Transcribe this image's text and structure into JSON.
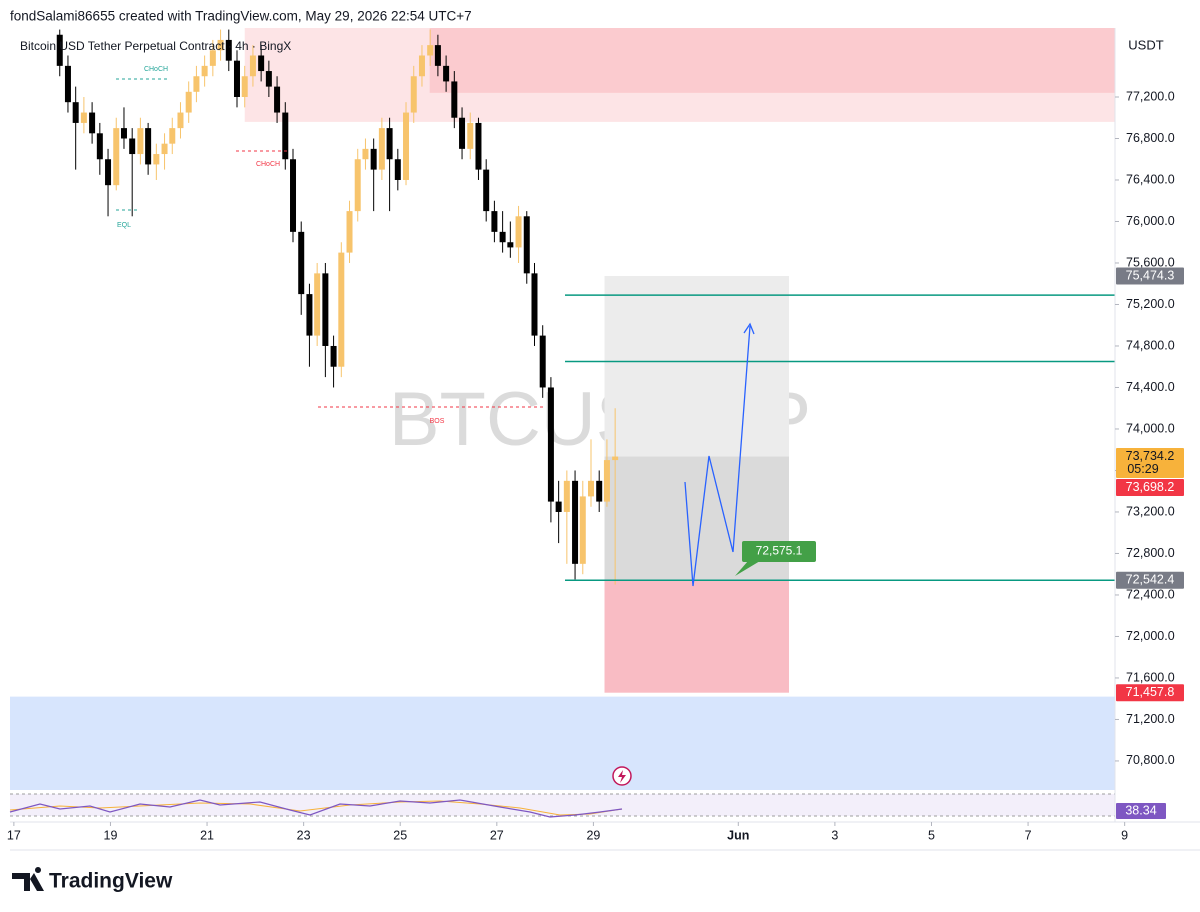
{
  "header": "fondSalami86655 created with TradingView.com, May 29, 2026 22:54 UTC+7",
  "footer": "TradingView",
  "chart_data": {
    "type": "candlestick",
    "title": "Bitcoin USD Tether Perpetual Contract · 4h · BingX",
    "watermark": "BTCUSDT.P",
    "currency": "USDT",
    "up_color": "#f7c46c",
    "down_color": "#000000",
    "x": [
      0.95,
      1.12,
      1.28,
      1.45,
      1.62,
      1.78,
      1.95,
      2.12,
      2.28,
      2.45,
      2.62,
      2.78,
      2.95,
      3.12,
      3.28,
      3.45,
      3.62,
      3.78,
      3.95,
      4.12,
      4.28,
      4.45,
      4.62,
      4.78,
      4.95,
      5.12,
      5.28,
      5.45,
      5.62,
      5.78,
      5.95,
      6.12,
      6.28,
      6.45,
      6.62,
      6.78,
      6.95,
      7.12,
      7.28,
      7.45,
      7.62,
      7.78,
      7.95,
      8.12,
      8.28,
      8.45,
      8.62,
      8.78,
      8.95,
      9.12,
      9.28,
      9.45,
      9.62,
      9.78,
      9.95,
      10.12,
      10.28,
      10.45,
      10.62,
      10.78,
      10.95,
      11.12,
      11.28,
      11.45,
      11.62,
      11.78,
      11.95,
      12.12,
      12.28,
      12.45
    ],
    "open": [
      77800,
      77500,
      77150,
      76950,
      77050,
      76850,
      76600,
      76350,
      76900,
      76800,
      76650,
      76900,
      76550,
      76650,
      76750,
      76900,
      77050,
      77250,
      77400,
      77500,
      77650,
      77750,
      77550,
      77200,
      77400,
      77600,
      77450,
      77300,
      77050,
      76600,
      75900,
      75300,
      74900,
      75500,
      74800,
      74600,
      75700,
      76100,
      76600,
      76700,
      76500,
      76900,
      76600,
      76400,
      77050,
      77400,
      77600,
      77700,
      77500,
      77350,
      77000,
      76700,
      76950,
      76500,
      76100,
      75900,
      75800,
      75750,
      76050,
      75500,
      74900,
      74400,
      73300,
      73200,
      73500,
      72700,
      73350,
      73500,
      73300,
      73700
    ],
    "high": [
      77850,
      77600,
      77300,
      77200,
      77150,
      76950,
      76700,
      77000,
      77100,
      76900,
      77000,
      76950,
      76750,
      76850,
      77000,
      77150,
      77350,
      77500,
      77600,
      77750,
      77850,
      77850,
      77650,
      77500,
      77700,
      77700,
      77550,
      77400,
      77150,
      76700,
      76000,
      75400,
      75600,
      75600,
      74900,
      75800,
      76200,
      76700,
      76800,
      76800,
      77000,
      77000,
      76700,
      77150,
      77500,
      77700,
      77850,
      77800,
      77600,
      77450,
      77100,
      77050,
      77000,
      76600,
      76200,
      76100,
      76000,
      76150,
      76100,
      75600,
      75000,
      74500,
      73500,
      73600,
      73600,
      73500,
      73900,
      73600,
      73900,
      74200
    ],
    "low": [
      77400,
      77050,
      76500,
      76850,
      76750,
      76450,
      76050,
      76300,
      76700,
      76050,
      76550,
      76450,
      76400,
      76500,
      76650,
      76800,
      76950,
      77150,
      77300,
      77400,
      77550,
      77450,
      77100,
      77100,
      77300,
      77350,
      77200,
      76950,
      76500,
      75800,
      75100,
      74600,
      74800,
      74500,
      74400,
      74500,
      75600,
      76000,
      76500,
      76100,
      76400,
      76100,
      76300,
      76350,
      76950,
      77300,
      77500,
      77400,
      77250,
      76900,
      76600,
      76600,
      76400,
      76000,
      75800,
      75700,
      75650,
      75600,
      75400,
      74800,
      74300,
      73100,
      72900,
      72700,
      72550,
      72600,
      73250,
      73200,
      73250,
      72500
    ],
    "close": [
      77500,
      77150,
      76950,
      77050,
      76850,
      76600,
      76350,
      76900,
      76800,
      76650,
      76900,
      76550,
      76650,
      76750,
      76900,
      77050,
      77250,
      77400,
      77500,
      77650,
      77750,
      77550,
      77200,
      77400,
      77600,
      77450,
      77300,
      77050,
      76600,
      75900,
      75300,
      74900,
      75500,
      74800,
      74600,
      75700,
      76100,
      76600,
      76700,
      76500,
      76900,
      76600,
      76400,
      77050,
      77400,
      77600,
      77700,
      77500,
      77350,
      77000,
      76700,
      76950,
      76500,
      76100,
      75900,
      75800,
      75750,
      76050,
      75500,
      74900,
      74400,
      73300,
      73200,
      73500,
      72700,
      73350,
      73500,
      73300,
      73700,
      73734.2
    ],
    "xlim": [
      -0.08,
      22.8
    ],
    "ylim": [
      70520,
      77865
    ],
    "xticks": [
      {
        "value": 0,
        "label": "17"
      },
      {
        "value": 2,
        "label": "19"
      },
      {
        "value": 4,
        "label": "21"
      },
      {
        "value": 6,
        "label": "23"
      },
      {
        "value": 8,
        "label": "25"
      },
      {
        "value": 10,
        "label": "27"
      },
      {
        "value": 12,
        "label": "29"
      },
      {
        "value": 15,
        "label": "Jun"
      },
      {
        "value": 17,
        "label": "3"
      },
      {
        "value": 19,
        "label": "5"
      },
      {
        "value": 21,
        "label": "7"
      },
      {
        "value": 23,
        "label": "9"
      }
    ],
    "yticks": [
      {
        "value": 70800,
        "label": "70,800.0"
      },
      {
        "value": 71200,
        "label": "71,200.0"
      },
      {
        "value": 71600,
        "label": "71,600.0"
      },
      {
        "value": 72000,
        "label": "72,000.0"
      },
      {
        "value": 72400,
        "label": "72,400.0"
      },
      {
        "value": 72800,
        "label": "72,800.0"
      },
      {
        "value": 73200,
        "label": "73,200.0"
      },
      {
        "value": 73600,
        "label": "73,600.0"
      },
      {
        "value": 74000,
        "label": "74,000.0"
      },
      {
        "value": 74400,
        "label": "74,400.0"
      },
      {
        "value": 74800,
        "label": "74,800.0"
      },
      {
        "value": 75200,
        "label": "75,200.0"
      },
      {
        "value": 75600,
        "label": "75,600.0"
      },
      {
        "value": 76000,
        "label": "76,000.0"
      },
      {
        "value": 76400,
        "label": "76,400.0"
      },
      {
        "value": 76800,
        "label": "76,800.0"
      },
      {
        "value": 77200,
        "label": "77,200.0"
      }
    ],
    "zones": [
      {
        "from": 76960,
        "to": 77865,
        "start": 4.78,
        "color": "#fde4e6"
      },
      {
        "from": 77240,
        "to": 77865,
        "start": 8.61,
        "color": "#fbcbcf"
      },
      {
        "from": 70520,
        "to": 71420,
        "start": -0.08,
        "color": "#d7e5fd"
      }
    ],
    "levels": [
      75290,
      74650,
      72542.4
    ],
    "level_color": "#089981",
    "position": {
      "start": 12.23,
      "end": 16.05,
      "target_color": "#ececec",
      "entry_color": "#dadada",
      "stop_color": "#f9bcc4"
    },
    "price_labels": [
      {
        "value": 75474.3,
        "label": "75,474.3",
        "color": "#787b86"
      },
      {
        "value": 73734.2,
        "label": "73,734.2",
        "color": "#f7b23b"
      },
      {
        "value": 73698.2,
        "label": "73,698.2",
        "color": "#f23645"
      },
      {
        "value": 72542.4,
        "label": "72,542.4",
        "color": "#787b86"
      },
      {
        "value": 71457.8,
        "label": "71,457.8",
        "color": "#f23645"
      }
    ],
    "countdown": "05:29",
    "callout": {
      "value": 72575.1,
      "label": "72,575.1"
    },
    "annotations": [
      "CHoCH",
      "EQL",
      "CHoCH",
      "BOS"
    ],
    "rsi": {
      "value": 38.34,
      "label": "38.34"
    }
  }
}
